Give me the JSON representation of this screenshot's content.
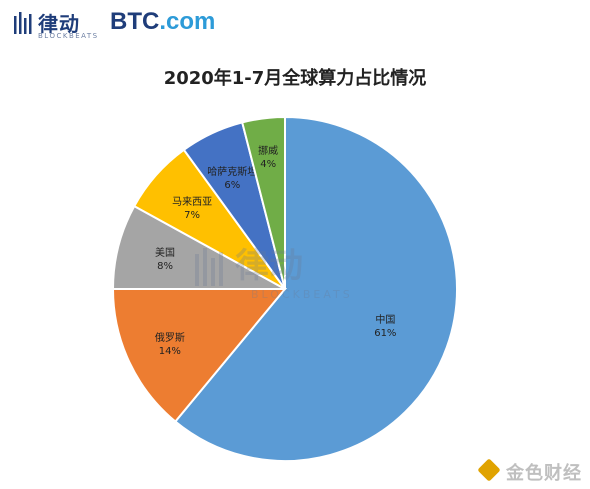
{
  "header": {
    "blockbeats_name": "律动",
    "blockbeats_sub": "BLOCKBEATS",
    "btc_name": "BTC",
    "btc_suffix": ".com"
  },
  "watermark": {
    "name": "律动",
    "sub": "BLOCKBEATS"
  },
  "footer": {
    "jinse_name": "金色财经"
  },
  "colors": {
    "china": "#5b9bd5",
    "russia": "#ed7d31",
    "usa": "#a5a5a5",
    "malaysia": "#ffc000",
    "kazakhstan": "#4472c4",
    "norway": "#70ad47"
  },
  "chart_data": {
    "type": "pie",
    "title": "2020年1-7月全球算力占比情况",
    "slices": [
      {
        "label": "中国",
        "value": 61,
        "value_label": "61%",
        "color": "#5b9bd5"
      },
      {
        "label": "俄罗斯",
        "value": 14,
        "value_label": "14%",
        "color": "#ed7d31"
      },
      {
        "label": "美国",
        "value": 8,
        "value_label": "8%",
        "color": "#a5a5a5"
      },
      {
        "label": "马来西亚",
        "value": 7,
        "value_label": "7%",
        "color": "#ffc000"
      },
      {
        "label": "哈萨克斯坦",
        "value": 6,
        "value_label": "6%",
        "color": "#4472c4"
      },
      {
        "label": "挪威",
        "value": 4,
        "value_label": "4%",
        "color": "#70ad47"
      }
    ]
  }
}
